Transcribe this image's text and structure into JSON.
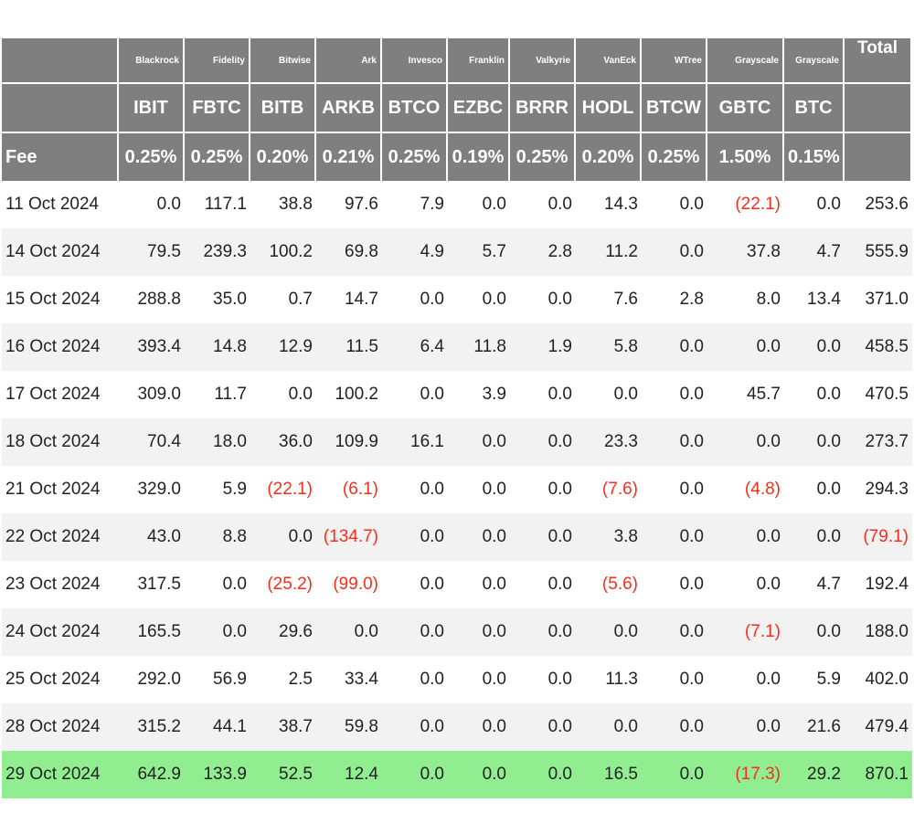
{
  "header": {
    "issuers": [
      "Blackrock",
      "Fidelity",
      "Bitwise",
      "Ark",
      "Invesco",
      "Franklin",
      "Valkyrie",
      "VanEck",
      "WTree",
      "Grayscale",
      "Grayscale"
    ],
    "total_label": "Total",
    "tickers": [
      "IBIT",
      "FBTC",
      "BITB",
      "ARKB",
      "BTCO",
      "EZBC",
      "BRRR",
      "HODL",
      "BTCW",
      "GBTC",
      "BTC"
    ],
    "fee_label": "Fee",
    "fees": [
      "0.25%",
      "0.25%",
      "0.20%",
      "0.21%",
      "0.25%",
      "0.19%",
      "0.25%",
      "0.20%",
      "0.25%",
      "1.50%",
      "0.15%"
    ]
  },
  "rows": [
    {
      "date": "11 Oct 2024",
      "values": [
        "0.0",
        "117.1",
        "38.8",
        "97.6",
        "7.9",
        "0.0",
        "0.0",
        "14.3",
        "0.0",
        "(22.1)",
        "0.0",
        "253.6"
      ]
    },
    {
      "date": "14 Oct 2024",
      "values": [
        "79.5",
        "239.3",
        "100.2",
        "69.8",
        "4.9",
        "5.7",
        "2.8",
        "11.2",
        "0.0",
        "37.8",
        "4.7",
        "555.9"
      ]
    },
    {
      "date": "15 Oct 2024",
      "values": [
        "288.8",
        "35.0",
        "0.7",
        "14.7",
        "0.0",
        "0.0",
        "0.0",
        "7.6",
        "2.8",
        "8.0",
        "13.4",
        "371.0"
      ]
    },
    {
      "date": "16 Oct 2024",
      "values": [
        "393.4",
        "14.8",
        "12.9",
        "11.5",
        "6.4",
        "11.8",
        "1.9",
        "5.8",
        "0.0",
        "0.0",
        "0.0",
        "458.5"
      ]
    },
    {
      "date": "17 Oct 2024",
      "values": [
        "309.0",
        "11.7",
        "0.0",
        "100.2",
        "0.0",
        "3.9",
        "0.0",
        "0.0",
        "0.0",
        "45.7",
        "0.0",
        "470.5"
      ]
    },
    {
      "date": "18 Oct 2024",
      "values": [
        "70.4",
        "18.0",
        "36.0",
        "109.9",
        "16.1",
        "0.0",
        "0.0",
        "23.3",
        "0.0",
        "0.0",
        "0.0",
        "273.7"
      ]
    },
    {
      "date": "21 Oct 2024",
      "values": [
        "329.0",
        "5.9",
        "(22.1)",
        "(6.1)",
        "0.0",
        "0.0",
        "0.0",
        "(7.6)",
        "0.0",
        "(4.8)",
        "0.0",
        "294.3"
      ]
    },
    {
      "date": "22 Oct 2024",
      "values": [
        "43.0",
        "8.8",
        "0.0",
        "(134.7)",
        "0.0",
        "0.0",
        "0.0",
        "3.8",
        "0.0",
        "0.0",
        "0.0",
        "(79.1)"
      ]
    },
    {
      "date": "23 Oct 2024",
      "values": [
        "317.5",
        "0.0",
        "(25.2)",
        "(99.0)",
        "0.0",
        "0.0",
        "0.0",
        "(5.6)",
        "0.0",
        "0.0",
        "4.7",
        "192.4"
      ]
    },
    {
      "date": "24 Oct 2024",
      "values": [
        "165.5",
        "0.0",
        "29.6",
        "0.0",
        "0.0",
        "0.0",
        "0.0",
        "0.0",
        "0.0",
        "(7.1)",
        "0.0",
        "188.0"
      ]
    },
    {
      "date": "25 Oct 2024",
      "values": [
        "292.0",
        "56.9",
        "2.5",
        "33.4",
        "0.0",
        "0.0",
        "0.0",
        "11.3",
        "0.0",
        "0.0",
        "5.9",
        "402.0"
      ]
    },
    {
      "date": "28 Oct 2024",
      "values": [
        "315.2",
        "44.1",
        "38.7",
        "59.8",
        "0.0",
        "0.0",
        "0.0",
        "0.0",
        "0.0",
        "0.0",
        "21.6",
        "479.4"
      ]
    },
    {
      "date": "29 Oct 2024",
      "values": [
        "642.9",
        "133.9",
        "52.5",
        "12.4",
        "0.0",
        "0.0",
        "0.0",
        "16.5",
        "0.0",
        "(17.3)",
        "29.2",
        "870.1"
      ]
    }
  ],
  "colors": {
    "header_bg": "#7f7f7f",
    "alt_row_bg": "#f2f2f2",
    "highlight_row_bg": "#90ee90",
    "negative_text": "#ff2a1a"
  }
}
